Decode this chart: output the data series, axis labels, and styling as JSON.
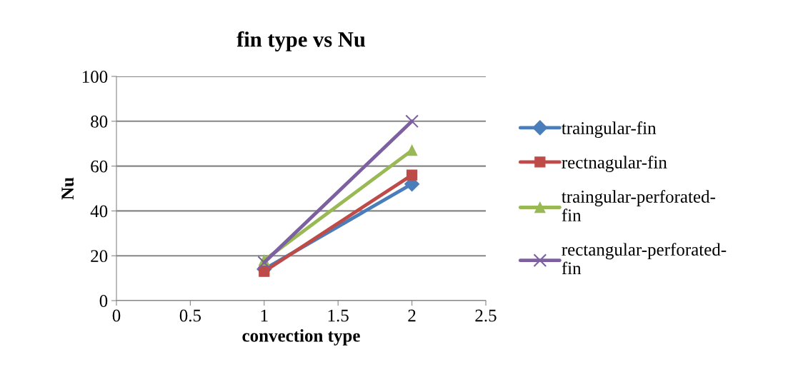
{
  "chart_data": {
    "type": "line",
    "title": "fin type vs Nu",
    "xlabel": "convection type",
    "ylabel": "Nu",
    "x": [
      1,
      2
    ],
    "series": [
      {
        "name": "traingular-fin",
        "color": "#4a7ebb",
        "values": [
          14,
          52
        ],
        "marker": "diamond"
      },
      {
        "name": "rectnagular-fin",
        "color": "#be4b48",
        "values": [
          13,
          56
        ],
        "marker": "square"
      },
      {
        "name": "traingular-perforated-fin",
        "color": "#98b954",
        "values": [
          18,
          67
        ],
        "marker": "triangle"
      },
      {
        "name": "rectangular-perforated-fin",
        "color": "#7d60a0",
        "values": [
          17,
          80
        ],
        "marker": "cross"
      }
    ],
    "xlim": [
      0,
      2.5
    ],
    "xticks": [
      0,
      0.5,
      1,
      1.5,
      2,
      2.5
    ],
    "ylim": [
      0,
      100
    ],
    "yticks": [
      0,
      20,
      40,
      60,
      80,
      100
    ],
    "grid": "y",
    "legend": "right",
    "line_style": "solid"
  }
}
